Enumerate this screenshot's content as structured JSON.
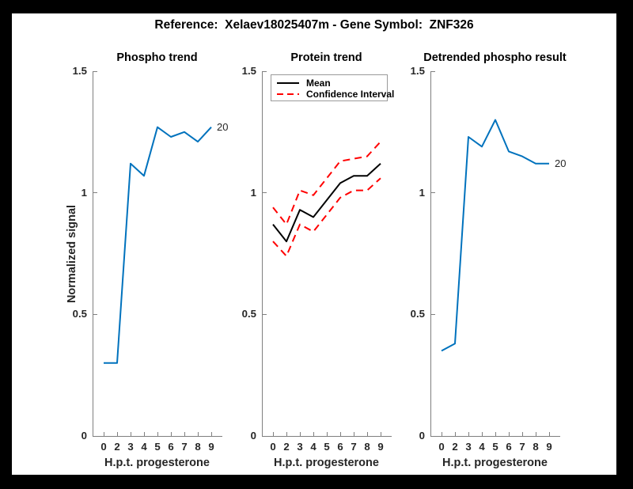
{
  "suptitle": "Reference:  Xelaev18025407m - Gene Symbol:  ZNF326",
  "colors": {
    "signal_blue": "#0072BD",
    "confidence_red": "#FF0000",
    "mean_black": "#000000",
    "axis_gray": "#7f7f7f",
    "text_dark": "#262626",
    "frame_black": "#000000",
    "figure_white": "#ffffff"
  },
  "chart_data": [
    {
      "type": "line",
      "title": "Phospho trend",
      "xlabel": "H.p.t. progesterone",
      "ylabel": "Normalized signal",
      "x": [
        0,
        2,
        3,
        4,
        5,
        6,
        7,
        8,
        9
      ],
      "x_tick_labels": [
        "0",
        "2",
        "3",
        "4",
        "5",
        "6",
        "7",
        "8",
        "9"
      ],
      "y_tick_labels": [
        "0",
        "0.5",
        "1",
        "1.5"
      ],
      "y_tick_values": [
        0,
        0.5,
        1,
        1.5
      ],
      "ylim": [
        0,
        1.5
      ],
      "grid": false,
      "series": [
        {
          "name": "Phospho signal",
          "color": "#0072BD",
          "style": "solid",
          "values": [
            0.3,
            0.3,
            1.12,
            1.07,
            1.27,
            1.23,
            1.25,
            1.21,
            1.27
          ]
        }
      ],
      "end_annotation": "20"
    },
    {
      "type": "line",
      "title": "Protein trend",
      "xlabel": "H.p.t. progesterone",
      "ylabel": "",
      "x": [
        0,
        2,
        3,
        4,
        5,
        6,
        7,
        8,
        9
      ],
      "x_tick_labels": [
        "0",
        "2",
        "3",
        "4",
        "5",
        "6",
        "7",
        "8",
        "9"
      ],
      "y_tick_labels": [
        "0",
        "0.5",
        "1",
        "1.5"
      ],
      "y_tick_values": [
        0,
        0.5,
        1,
        1.5
      ],
      "ylim": [
        0,
        1.5
      ],
      "grid": false,
      "series": [
        {
          "name": "Mean",
          "color": "#000000",
          "style": "solid",
          "values": [
            0.87,
            0.8,
            0.93,
            0.9,
            0.97,
            1.04,
            1.07,
            1.07,
            1.12
          ]
        },
        {
          "name": "Confidence Interval upper",
          "color": "#FF0000",
          "style": "dashed",
          "values": [
            0.94,
            0.87,
            1.01,
            0.99,
            1.06,
            1.13,
            1.14,
            1.15,
            1.21
          ]
        },
        {
          "name": "Confidence Interval lower",
          "color": "#FF0000",
          "style": "dashed",
          "values": [
            0.8,
            0.74,
            0.87,
            0.84,
            0.91,
            0.98,
            1.01,
            1.01,
            1.06
          ]
        }
      ],
      "legend": {
        "position": "northwest",
        "entries": [
          {
            "label": "Mean",
            "color": "#000000",
            "style": "solid"
          },
          {
            "label": "Confidence Interval",
            "color": "#FF0000",
            "style": "dashed"
          }
        ]
      }
    },
    {
      "type": "line",
      "title": "Detrended phospho result",
      "xlabel": "H.p.t. progesterone",
      "ylabel": "",
      "x": [
        0,
        2,
        3,
        4,
        5,
        6,
        7,
        8,
        9
      ],
      "x_tick_labels": [
        "0",
        "2",
        "3",
        "4",
        "5",
        "6",
        "7",
        "8",
        "9"
      ],
      "y_tick_labels": [
        "0",
        "0.5",
        "1",
        "1.5"
      ],
      "y_tick_values": [
        0,
        0.5,
        1,
        1.5
      ],
      "ylim": [
        0,
        1.5
      ],
      "grid": false,
      "series": [
        {
          "name": "Detrended phospho signal",
          "color": "#0072BD",
          "style": "solid",
          "values": [
            0.35,
            0.38,
            1.23,
            1.19,
            1.3,
            1.17,
            1.15,
            1.12,
            1.12
          ]
        }
      ],
      "end_annotation": "20"
    }
  ]
}
